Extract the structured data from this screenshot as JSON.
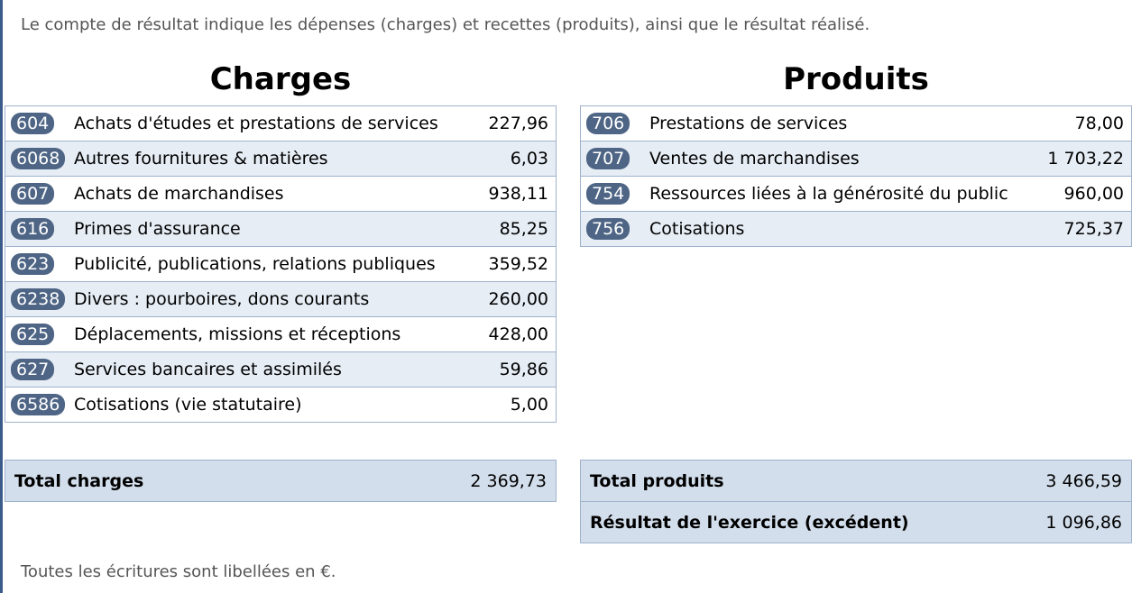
{
  "intro": "Le compte de résultat indique les dépenses (charges) et recettes (produits), ainsi que le résultat réalisé.",
  "charges": {
    "title": "Charges",
    "rows": [
      {
        "code": "604",
        "label": "Achats d'études et prestations de services",
        "amount": "227,96"
      },
      {
        "code": "6068",
        "label": "Autres fournitures & matières",
        "amount": "6,03"
      },
      {
        "code": "607",
        "label": "Achats de marchandises",
        "amount": "938,11"
      },
      {
        "code": "616",
        "label": "Primes d'assurance",
        "amount": "85,25"
      },
      {
        "code": "623",
        "label": "Publicité, publications, relations publiques",
        "amount": "359,52"
      },
      {
        "code": "6238",
        "label": "Divers : pourboires, dons courants",
        "amount": "260,00"
      },
      {
        "code": "625",
        "label": "Déplacements, missions et réceptions",
        "amount": "428,00"
      },
      {
        "code": "627",
        "label": "Services bancaires et assimilés",
        "amount": "59,86"
      },
      {
        "code": "6586",
        "label": "Cotisations (vie statutaire)",
        "amount": "5,00"
      }
    ],
    "total_label": "Total charges",
    "total_amount": "2 369,73"
  },
  "produits": {
    "title": "Produits",
    "rows": [
      {
        "code": "706",
        "label": "Prestations de services",
        "amount": "78,00"
      },
      {
        "code": "707",
        "label": "Ventes de marchandises",
        "amount": "1 703,22"
      },
      {
        "code": "754",
        "label": "Ressources liées à la générosité du public",
        "amount": "960,00"
      },
      {
        "code": "756",
        "label": "Cotisations",
        "amount": "725,37"
      }
    ],
    "total_label": "Total produits",
    "total_amount": "3 466,59",
    "result_label": "Résultat de l'exercice (excédent)",
    "result_amount": "1 096,86"
  },
  "footer": "Toutes les écritures sont libellées en €."
}
